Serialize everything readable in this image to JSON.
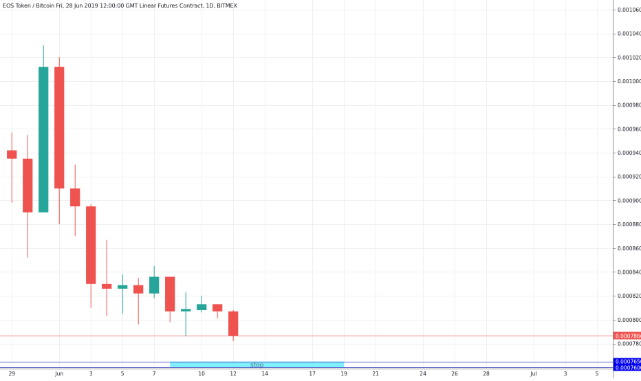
{
  "chart_data": {
    "type": "candlestick",
    "title": "EOS Token / Bitcoin Fri, 28 Jun 2019 12:00:00 GMT Linear Futures Contract, 1D, BITMEX",
    "colors": {
      "up": "#26a69a",
      "down": "#ef5350",
      "grid": "#eef0f3",
      "axis": "#8f8f8f",
      "stop_fill": "#7ff0ff",
      "level": "#5b5fc7",
      "label_bg": "#0000ee",
      "last_price": "#ef5350"
    },
    "ylim": [
      0.000759,
      0.001068
    ],
    "xlim": [
      -0.75,
      38.0
    ],
    "x_ticks": [
      {
        "day": 0,
        "label": "29"
      },
      {
        "day": 3,
        "label": "Jun"
      },
      {
        "day": 5,
        "label": "3"
      },
      {
        "day": 7,
        "label": "5"
      },
      {
        "day": 9,
        "label": "7"
      },
      {
        "day": 12,
        "label": "10"
      },
      {
        "day": 14,
        "label": "12"
      },
      {
        "day": 16,
        "label": "14"
      },
      {
        "day": 19,
        "label": "17"
      },
      {
        "day": 21,
        "label": "19"
      },
      {
        "day": 23,
        "label": "21"
      },
      {
        "day": 26,
        "label": "24"
      },
      {
        "day": 28,
        "label": "26"
      },
      {
        "day": 30,
        "label": "28"
      },
      {
        "day": 33,
        "label": "Jul"
      },
      {
        "day": 35,
        "label": "3"
      },
      {
        "day": 37,
        "label": "5"
      }
    ],
    "y_ticks": [
      "0.0007800",
      "0.0008000",
      "0.0008200",
      "0.0008400",
      "0.0008600",
      "0.0008800",
      "0.0009000",
      "0.0009200",
      "0.0009400",
      "0.0009600",
      "0.0009800",
      "0.0010000",
      "0.0010200",
      "0.0010400",
      "0.0010600"
    ],
    "candles": [
      {
        "day": 0,
        "open": 0.000942,
        "high": 0.000957,
        "low": 0.000898,
        "close": 0.000935
      },
      {
        "day": 1,
        "open": 0.000935,
        "high": 0.000955,
        "low": 0.000852,
        "close": 0.00089
      },
      {
        "day": 2,
        "open": 0.00089,
        "high": 0.00103,
        "low": 0.00089,
        "close": 0.001012
      },
      {
        "day": 3,
        "open": 0.001012,
        "high": 0.00102,
        "low": 0.00088,
        "close": 0.00091
      },
      {
        "day": 4,
        "open": 0.00091,
        "high": 0.00093,
        "low": 0.00087,
        "close": 0.000895
      },
      {
        "day": 5,
        "open": 0.000895,
        "high": 0.000897,
        "low": 0.00081,
        "close": 0.00083
      },
      {
        "day": 6,
        "open": 0.00083,
        "high": 0.000867,
        "low": 0.000803,
        "close": 0.000826
      },
      {
        "day": 7,
        "open": 0.000826,
        "high": 0.000838,
        "low": 0.000805,
        "close": 0.000829
      },
      {
        "day": 8,
        "open": 0.000829,
        "high": 0.000835,
        "low": 0.000796,
        "close": 0.000822
      },
      {
        "day": 9,
        "open": 0.000822,
        "high": 0.000845,
        "low": 0.000818,
        "close": 0.000836
      },
      {
        "day": 10,
        "open": 0.000836,
        "high": 0.000836,
        "low": 0.000798,
        "close": 0.000807
      },
      {
        "day": 11,
        "open": 0.000807,
        "high": 0.000823,
        "low": 0.000786,
        "close": 0.000809
      },
      {
        "day": 12,
        "open": 0.000808,
        "high": 0.00082,
        "low": 0.000806,
        "close": 0.000813
      },
      {
        "day": 13,
        "open": 0.000813,
        "high": 0.000813,
        "low": 0.000801,
        "close": 0.000807
      },
      {
        "day": 14,
        "open": 0.000807,
        "high": 0.000808,
        "low": 0.000782,
        "close": 0.0007866
      }
    ],
    "last_price": {
      "value": 0.0007866,
      "label": "0.0007866"
    },
    "stop_zone": {
      "label": "stop",
      "day_start": 10,
      "day_end": 21,
      "top": 0.000765,
      "bottom": 0.00076
    },
    "levels": [
      {
        "value": 0.000765,
        "label": "0.0007650"
      },
      {
        "value": 0.00076,
        "label": "0.0007600"
      }
    ]
  }
}
